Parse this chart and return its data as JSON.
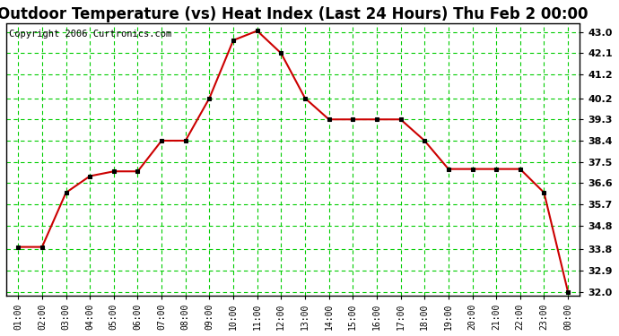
{
  "title": "Outdoor Temperature (vs) Heat Index (Last 24 Hours) Thu Feb 2 00:00",
  "copyright": "Copyright 2006 Curtronics.com",
  "x_labels": [
    "01:00",
    "02:00",
    "03:00",
    "04:00",
    "05:00",
    "06:00",
    "07:00",
    "08:00",
    "09:00",
    "10:00",
    "11:00",
    "12:00",
    "13:00",
    "14:00",
    "15:00",
    "16:00",
    "17:00",
    "18:00",
    "19:00",
    "20:00",
    "21:00",
    "22:00",
    "23:00",
    "00:00"
  ],
  "y_values": [
    33.9,
    33.9,
    36.2,
    36.9,
    37.1,
    37.1,
    38.4,
    38.4,
    40.2,
    42.65,
    43.05,
    42.1,
    40.2,
    39.3,
    39.3,
    39.3,
    39.3,
    38.4,
    37.2,
    37.2,
    37.2,
    37.2,
    36.2,
    32.0
  ],
  "ylim_min": 32.0,
  "ylim_max": 43.0,
  "ytick_values": [
    32.0,
    32.9,
    33.8,
    34.8,
    35.7,
    36.6,
    37.5,
    38.4,
    39.3,
    40.2,
    41.2,
    42.1,
    43.0
  ],
  "ytick_labels": [
    "32.0",
    "32.9",
    "33.8",
    "34.8",
    "35.7",
    "36.6",
    "37.5",
    "38.4",
    "39.3",
    "40.2",
    "41.2",
    "42.1",
    "43.0"
  ],
  "line_color": "#cc0000",
  "marker_color": "#000000",
  "bg_color": "#ffffff",
  "plot_bg_color": "#ffffff",
  "grid_color": "#00cc00",
  "title_fontsize": 12,
  "copyright_fontsize": 7.5,
  "tick_fontsize": 8,
  "xtick_fontsize": 7
}
